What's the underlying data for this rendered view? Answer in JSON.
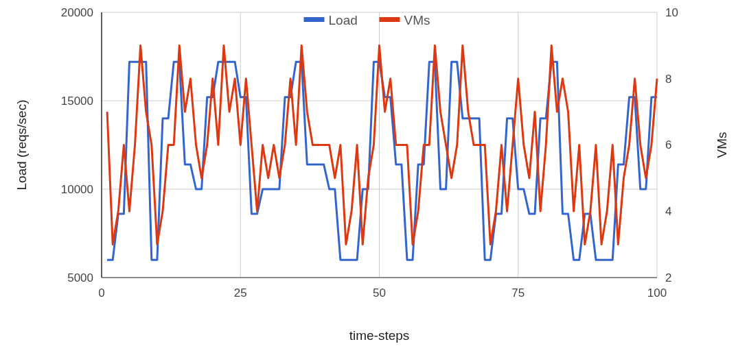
{
  "chart_data": {
    "type": "line",
    "xlabel": "time-steps",
    "ylabel": "Load (reqs/sec)",
    "y2label": "VMs",
    "x": [
      1,
      2,
      3,
      4,
      5,
      6,
      7,
      8,
      9,
      10,
      11,
      12,
      13,
      14,
      15,
      16,
      17,
      18,
      19,
      20,
      21,
      22,
      23,
      24,
      25,
      26,
      27,
      28,
      29,
      30,
      31,
      32,
      33,
      34,
      35,
      36,
      37,
      38,
      39,
      40,
      41,
      42,
      43,
      44,
      45,
      46,
      47,
      48,
      49,
      50,
      51,
      52,
      53,
      54,
      55,
      56,
      57,
      58,
      59,
      60,
      61,
      62,
      63,
      64,
      65,
      66,
      67,
      68,
      69,
      70,
      71,
      72,
      73,
      74,
      75,
      76,
      77,
      78,
      79,
      80,
      81,
      82,
      83,
      84,
      85,
      86,
      87,
      88,
      89,
      90,
      91,
      92,
      93,
      94,
      95,
      96,
      97,
      98,
      99,
      100
    ],
    "series": [
      {
        "name": "Load",
        "color": "#3366cc",
        "values": [
          6000,
          6000,
          8600,
          8600,
          17200,
          17200,
          17200,
          17200,
          6000,
          6000,
          14000,
          14000,
          17200,
          17200,
          11400,
          11400,
          10000,
          10000,
          15200,
          15200,
          17200,
          17200,
          17200,
          17200,
          15200,
          15200,
          8600,
          8600,
          10000,
          10000,
          10000,
          10000,
          15200,
          15200,
          17200,
          17200,
          11400,
          11400,
          11400,
          11400,
          10000,
          10000,
          6000,
          6000,
          6000,
          6000,
          10000,
          10000,
          17200,
          17200,
          15200,
          15200,
          11400,
          11400,
          6000,
          6000,
          11400,
          11400,
          17200,
          17200,
          10000,
          10000,
          17200,
          17200,
          14000,
          14000,
          14000,
          14000,
          6000,
          6000,
          8600,
          8600,
          14000,
          14000,
          10000,
          10000,
          8600,
          8600,
          14000,
          14000,
          17200,
          17200,
          8600,
          8600,
          6000,
          6000,
          8600,
          8600,
          6000,
          6000,
          6000,
          6000,
          11400,
          11400,
          15200,
          15200,
          10000,
          10000,
          15200,
          15200
        ]
      },
      {
        "name": "VMs",
        "color": "#dc3912",
        "axis": "y2",
        "values": [
          7,
          3,
          4,
          6,
          4,
          6,
          9,
          7,
          6,
          3,
          4,
          6,
          6,
          9,
          7,
          8,
          6,
          5,
          6,
          8,
          6,
          9,
          7,
          8,
          6,
          8,
          6,
          4,
          6,
          5,
          6,
          5,
          6,
          8,
          6,
          9,
          7,
          6,
          6,
          6,
          6,
          5,
          6,
          3,
          4,
          6,
          3,
          5,
          6,
          9,
          7,
          8,
          6,
          6,
          6,
          3,
          4,
          6,
          6,
          9,
          7,
          6,
          5,
          6,
          9,
          7,
          6,
          6,
          6,
          3,
          4,
          6,
          4,
          6,
          8,
          6,
          5,
          7,
          4,
          6,
          9,
          7,
          8,
          7,
          4,
          6,
          3,
          4,
          6,
          3,
          4,
          6,
          3,
          5,
          6,
          8,
          6,
          5,
          6,
          8
        ]
      }
    ],
    "xlim": [
      0,
      100
    ],
    "xticks": [
      0,
      25,
      50,
      75,
      100
    ],
    "ylim": [
      5000,
      20000
    ],
    "yticks": [
      5000,
      10000,
      15000,
      20000
    ],
    "y2lim": [
      2,
      10
    ],
    "y2ticks": [
      2,
      4,
      6,
      8,
      10
    ],
    "grid": true,
    "legend": "top"
  }
}
